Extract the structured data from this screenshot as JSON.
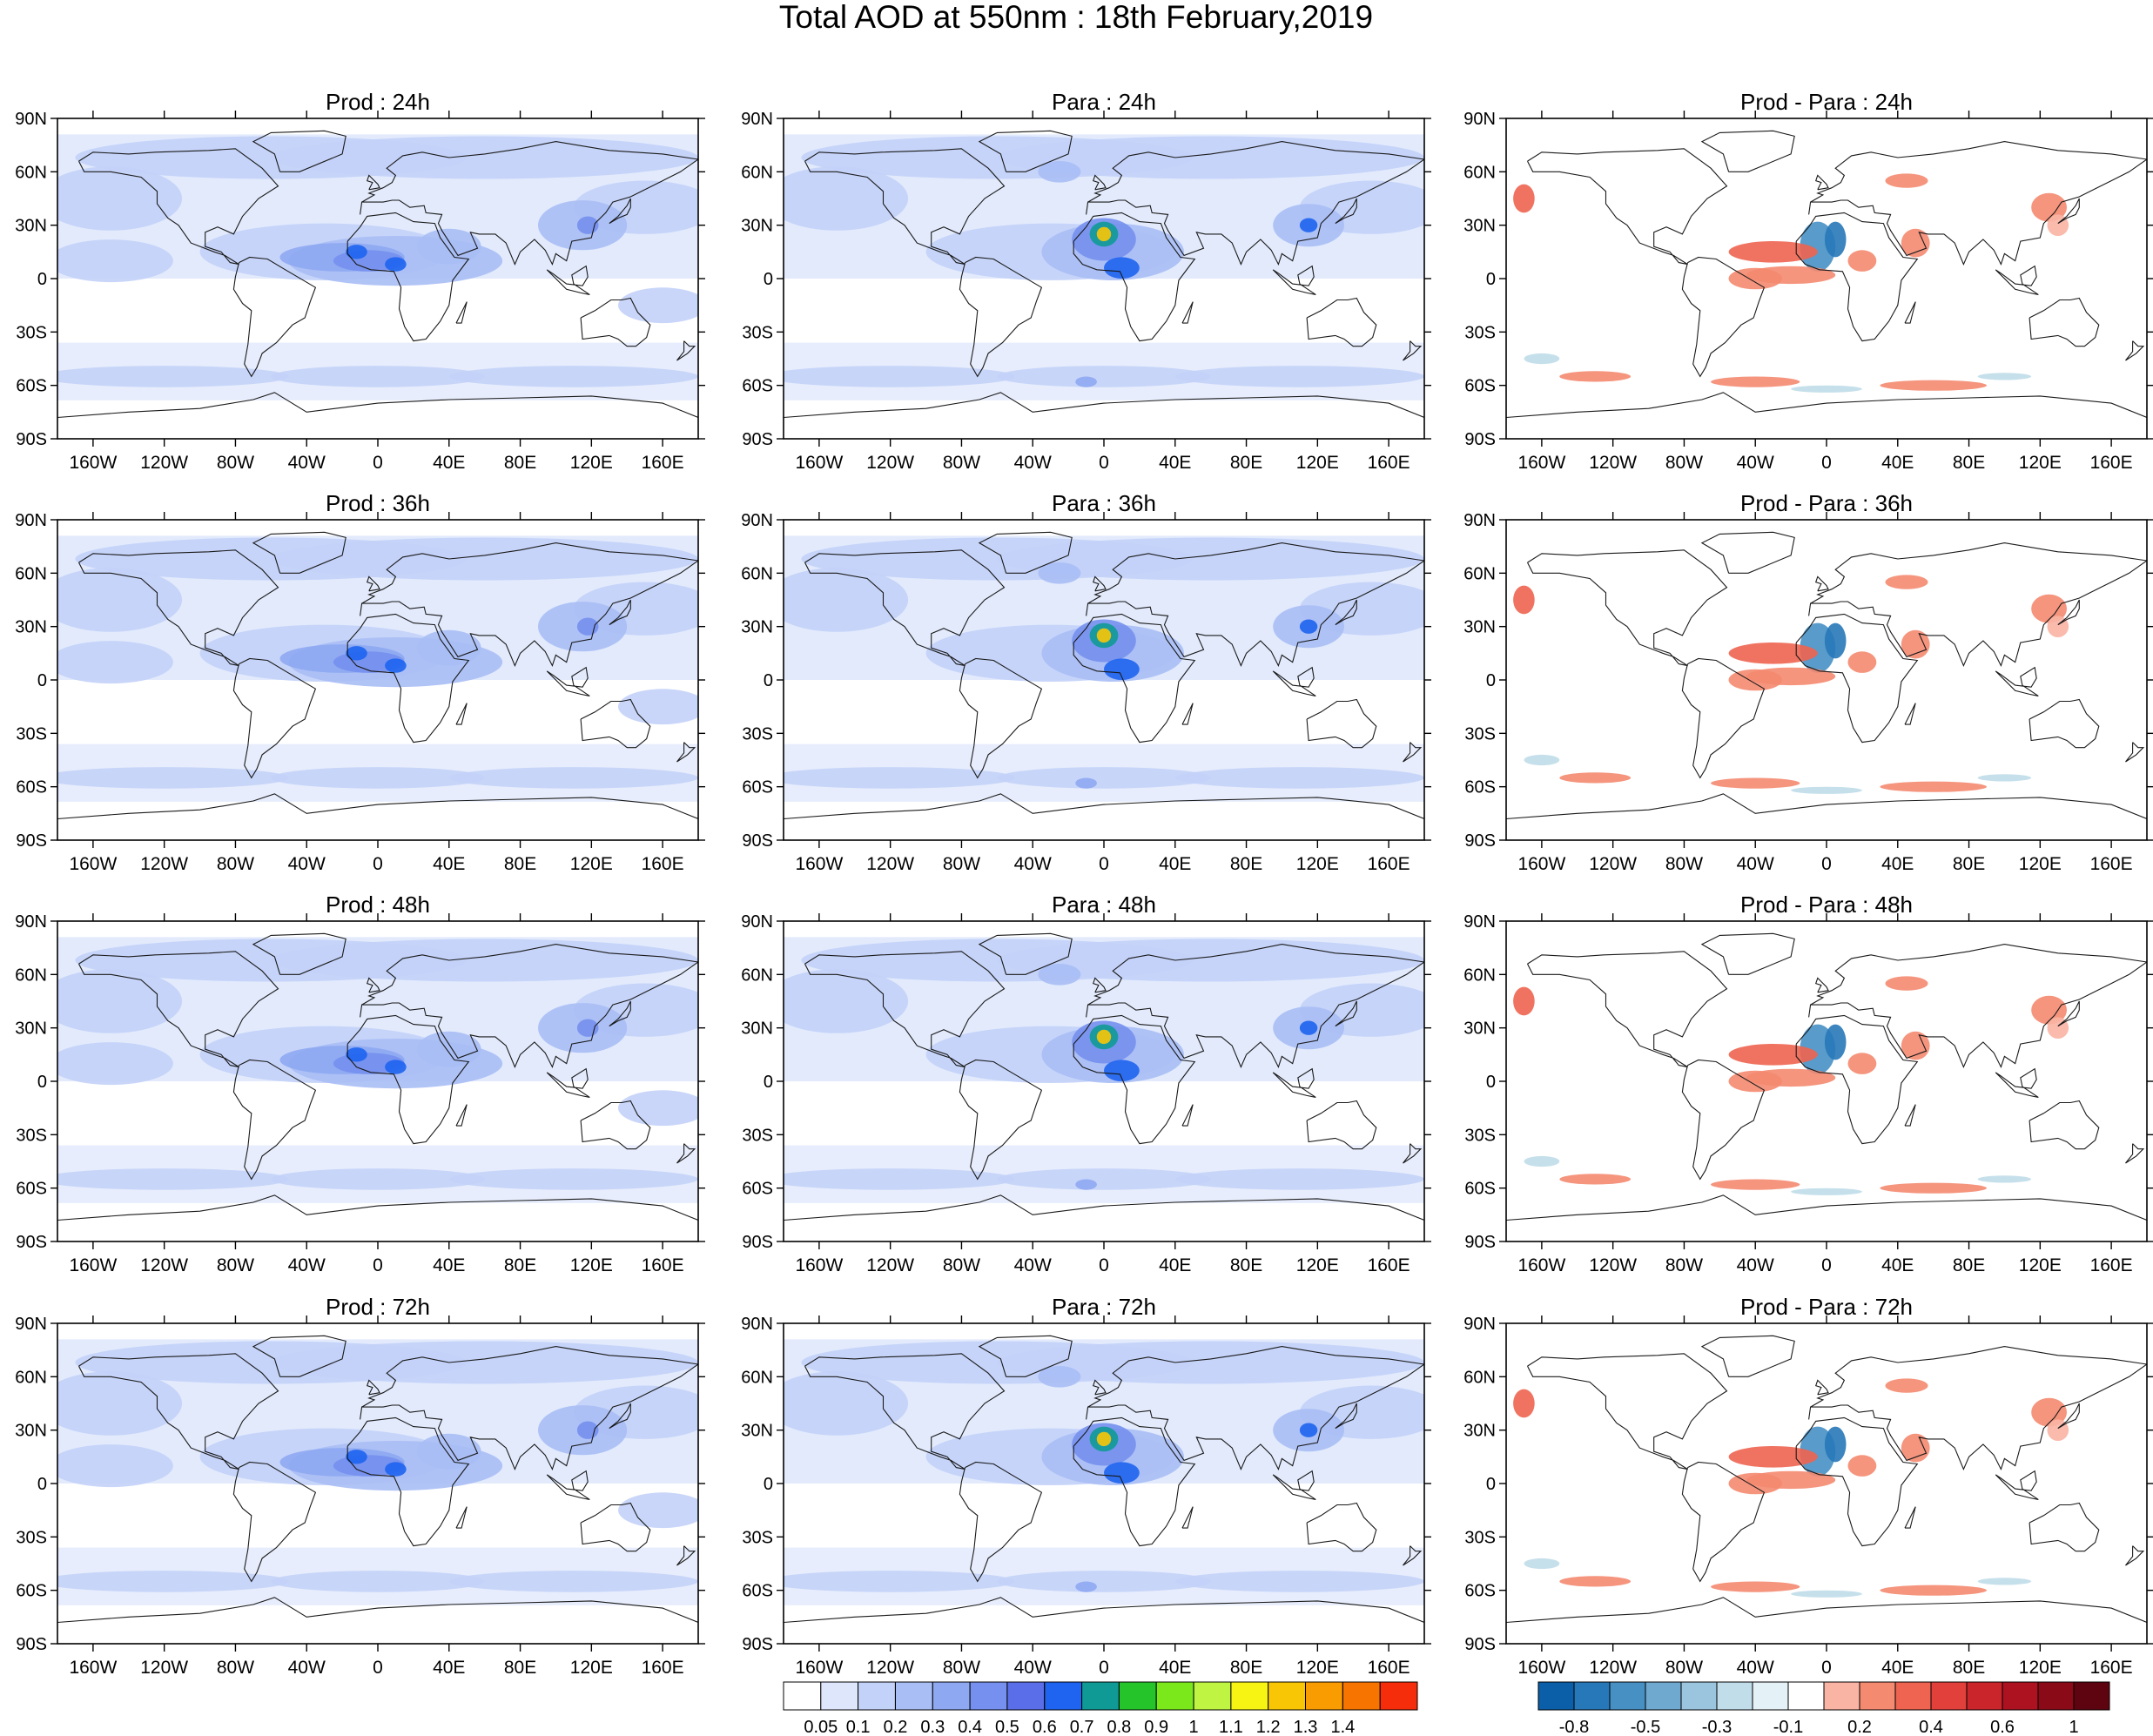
{
  "figure_title": "Total AOD at 550nm : 18th February,2019",
  "panels": [
    {
      "title": "Prod : 24h",
      "kind": "prod"
    },
    {
      "title": "Para : 24h",
      "kind": "para"
    },
    {
      "title": "Prod - Para : 24h",
      "kind": "diff"
    },
    {
      "title": "Prod : 36h",
      "kind": "prod"
    },
    {
      "title": "Para : 36h",
      "kind": "para"
    },
    {
      "title": "Prod - Para : 36h",
      "kind": "diff"
    },
    {
      "title": "Prod : 48h",
      "kind": "prod"
    },
    {
      "title": "Para : 48h",
      "kind": "para"
    },
    {
      "title": "Prod - Para : 48h",
      "kind": "diff"
    },
    {
      "title": "Prod : 72h",
      "kind": "prod"
    },
    {
      "title": "Para : 72h",
      "kind": "para"
    },
    {
      "title": "Prod - Para : 72h",
      "kind": "diff"
    }
  ],
  "lat_labels": [
    "90N",
    "60N",
    "30N",
    "0",
    "30S",
    "60S",
    "90S"
  ],
  "lon_labels": [
    "160W",
    "120W",
    "80W",
    "40W",
    "0",
    "40E",
    "80E",
    "120E",
    "160E"
  ],
  "lon_values": [
    -160,
    -120,
    -80,
    -40,
    0,
    40,
    80,
    120,
    160
  ],
  "lat_values": [
    90,
    60,
    30,
    0,
    -30,
    -60,
    -90
  ],
  "aod_colorbar": {
    "labels": [
      "0.05",
      "0.1",
      "0.2",
      "0.3",
      "0.4",
      "0.5",
      "0.6",
      "0.7",
      "0.8",
      "0.9",
      "1",
      "1.1",
      "1.2",
      "1.3",
      "1.4"
    ],
    "colors": [
      "#ffffff",
      "#dde6fb",
      "#c3d2f8",
      "#a8bef5",
      "#8ea8f2",
      "#7590ee",
      "#5a6ee9",
      "#1e64f0",
      "#109a96",
      "#25c42a",
      "#7be81b",
      "#bff542",
      "#f7f414",
      "#f9c605",
      "#f89c02",
      "#f77400",
      "#f52d0a"
    ]
  },
  "diff_colorbar": {
    "labels": [
      "-0.8",
      "-0.5",
      "-0.3",
      "-0.1",
      "0.2",
      "0.4",
      "0.6",
      "1"
    ],
    "colors": [
      "#0a5fa8",
      "#2778b8",
      "#4790c4",
      "#6fa9d0",
      "#9bc5de",
      "#c0dde9",
      "#e4f1f6",
      "#ffffff",
      "#f9b4a4",
      "#f48a70",
      "#ee6450",
      "#e2403a",
      "#cb252c",
      "#ad1221",
      "#8a0a18",
      "#5e0411"
    ]
  },
  "colors": {
    "low_aod": "#dde6fb",
    "mid_aod": "#a8bef5",
    "high_aod": "#5a6ee9",
    "neg_diff": "#2778b8",
    "pos_diff": "#ee6450"
  }
}
